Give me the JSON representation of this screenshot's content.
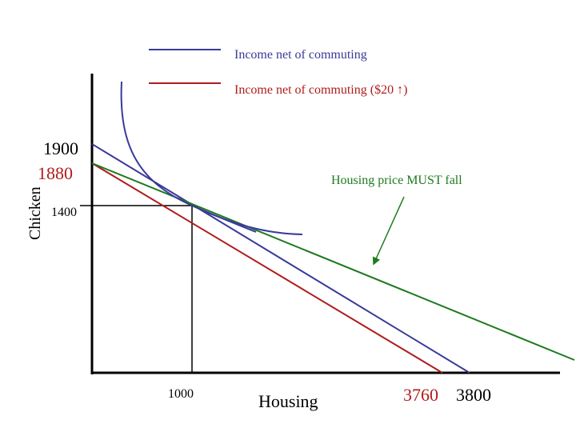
{
  "legend": {
    "blue_label": "Income net of commuting",
    "red_label": "Income net of commuting ($20 ↑)"
  },
  "axes": {
    "y_label": "Chicken",
    "x_label": "Housing",
    "y_ticks": [
      "1900",
      "1880",
      "1400"
    ],
    "x_ticks": [
      "1000",
      "3760",
      "3800"
    ]
  },
  "annotation": "Housing price MUST fall",
  "colors": {
    "blue": "#3a3a9a",
    "red": "#b01c1c",
    "green": "#1e7a1e",
    "black": "#000000"
  }
}
